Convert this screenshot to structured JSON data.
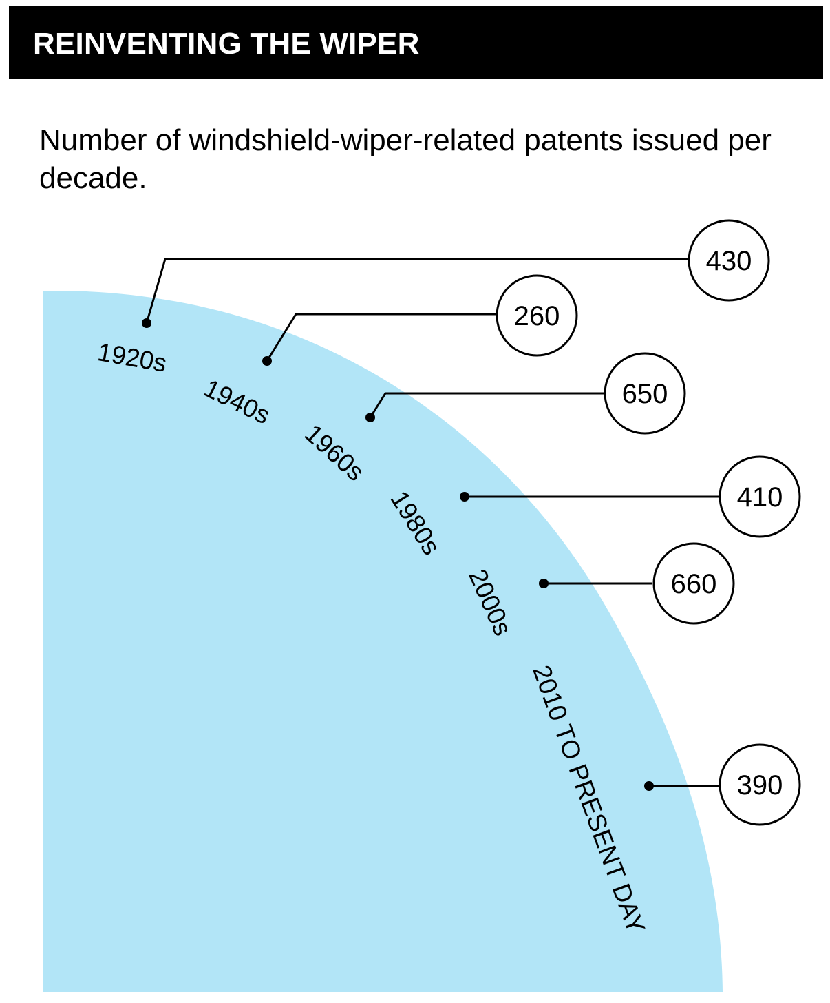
{
  "title": "REINVENTING THE WIPER",
  "subtitle": "Number of windshield-wiper-related patents issued per decade.",
  "colors": {
    "background": "#ffffff",
    "title_bar": "#000000",
    "title_text": "#ffffff",
    "quarter_disc": "#b2e5f7",
    "lines": "#000000"
  },
  "chart_data": {
    "type": "radial-timeline",
    "title": "REINVENTING THE WIPER",
    "subtitle": "Number of windshield-wiper-related patents issued per decade.",
    "categories": [
      "1920s",
      "1940s",
      "1960s",
      "1980s",
      "2000s",
      "2010 TO PRESENT DAY"
    ],
    "values": [
      430,
      260,
      650,
      410,
      660,
      390
    ],
    "series": [
      {
        "values": [
          430,
          260,
          650,
          410,
          660,
          390
        ]
      }
    ]
  }
}
